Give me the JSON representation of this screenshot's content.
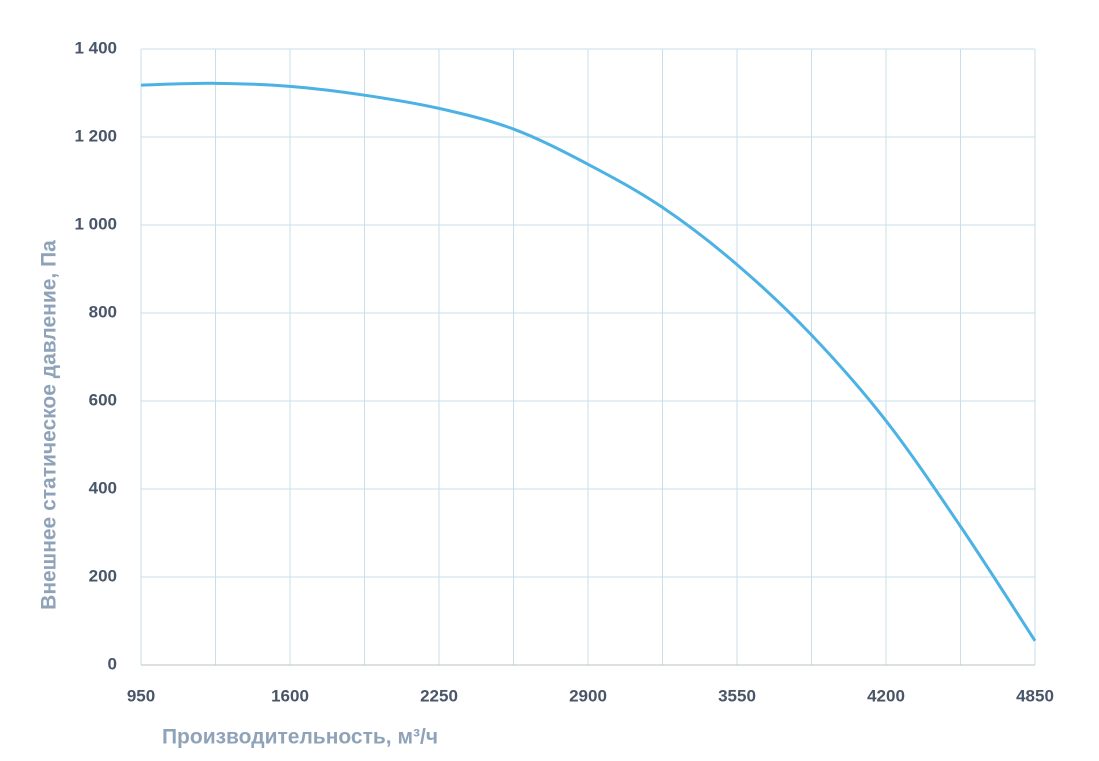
{
  "chart_data": {
    "type": "line",
    "x_label": "Производительность, м³/ч",
    "y_label": "Внешнее статическое давление, Па",
    "x": [
      950,
      1275,
      1600,
      1925,
      2250,
      2575,
      2900,
      3225,
      3550,
      3875,
      4200,
      4525,
      4850
    ],
    "series": [
      {
        "name": "Внешнее статическое давление",
        "color": "#4cb2e4",
        "values": [
          1318,
          1322,
          1315,
          1295,
          1265,
          1218,
          1138,
          1040,
          910,
          750,
          555,
          315,
          55
        ]
      }
    ],
    "xlim": [
      950,
      4850
    ],
    "xticks": [
      950,
      1600,
      2250,
      2900,
      3550,
      4200,
      4850
    ],
    "xminorticks": [
      1275,
      1925,
      2575,
      3225,
      3875,
      4525
    ],
    "ylim": [
      0,
      1400
    ],
    "yticks": [
      0,
      200,
      400,
      600,
      800,
      {
        "value": 1000,
        "label": "1 000"
      },
      {
        "value": 1200,
        "label": "1 200"
      },
      {
        "value": 1400,
        "label": "1 400"
      }
    ],
    "grid": true
  }
}
